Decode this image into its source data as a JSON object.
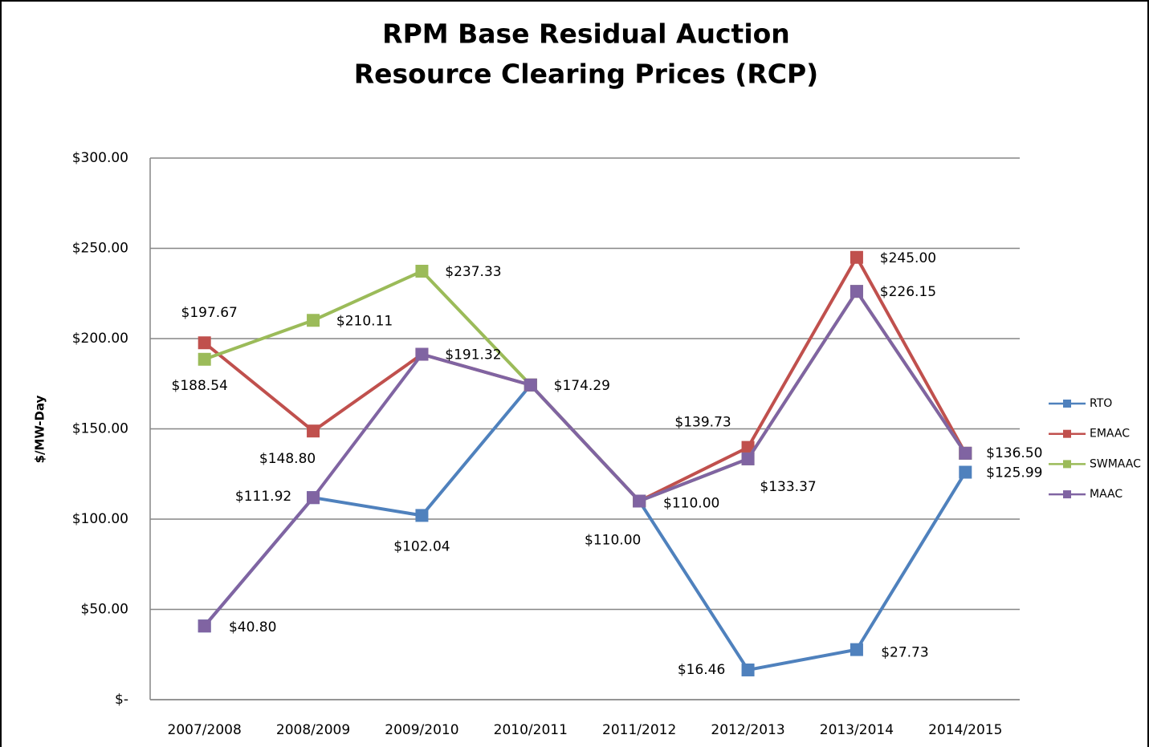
{
  "chart_data": {
    "type": "line",
    "title": "RPM Base Residual Auction",
    "subtitle": "Resource Clearing Prices (RCP)",
    "y_label": "$/MW-Day",
    "categories": [
      "2007/2008",
      "2008/2009",
      "2009/2010",
      "2010/2011",
      "2011/2012",
      "2012/2013",
      "2013/2014",
      "2014/2015"
    ],
    "ylim": [
      0,
      300
    ],
    "yticks": [
      {
        "value": 0,
        "label": "$-"
      },
      {
        "value": 50,
        "label": "$50.00"
      },
      {
        "value": 100,
        "label": "$100.00"
      },
      {
        "value": 150,
        "label": "$150.00"
      },
      {
        "value": 200,
        "label": "$200.00"
      },
      {
        "value": 250,
        "label": "$250.00"
      },
      {
        "value": 300,
        "label": "$300.00"
      }
    ],
    "grid": true,
    "legend": "right",
    "series": [
      {
        "name": "RTO",
        "color": "#4f81bd",
        "values": [
          40.8,
          111.92,
          102.04,
          174.29,
          110.0,
          16.46,
          27.73,
          125.99
        ],
        "value_labels": [
          null,
          null,
          "$102.04",
          null,
          "$110.00",
          "$16.46",
          "$27.73",
          "$125.99"
        ]
      },
      {
        "name": "EMAAC",
        "color": "#c0504d",
        "values": [
          197.67,
          148.8,
          191.32,
          174.29,
          110.0,
          139.73,
          245.0,
          136.5
        ],
        "value_labels": [
          "$197.67",
          "$148.80",
          null,
          null,
          null,
          "$139.73",
          "$245.00",
          null
        ]
      },
      {
        "name": "SWMAAC",
        "color": "#9bbb59",
        "values": [
          188.54,
          210.11,
          237.33,
          174.29,
          110.0,
          133.37,
          226.15,
          136.5
        ],
        "value_labels": [
          "$188.54",
          "$210.11",
          "$237.33",
          null,
          null,
          null,
          null,
          null
        ]
      },
      {
        "name": "MAAC",
        "color": "#8064a2",
        "values": [
          40.8,
          111.92,
          191.32,
          174.29,
          110.0,
          133.37,
          226.15,
          136.5
        ],
        "value_labels": [
          "$40.80",
          "$111.92",
          "$191.32",
          "$174.29",
          "$110.00",
          "$133.37",
          "$226.15",
          "$136.50"
        ]
      }
    ]
  }
}
